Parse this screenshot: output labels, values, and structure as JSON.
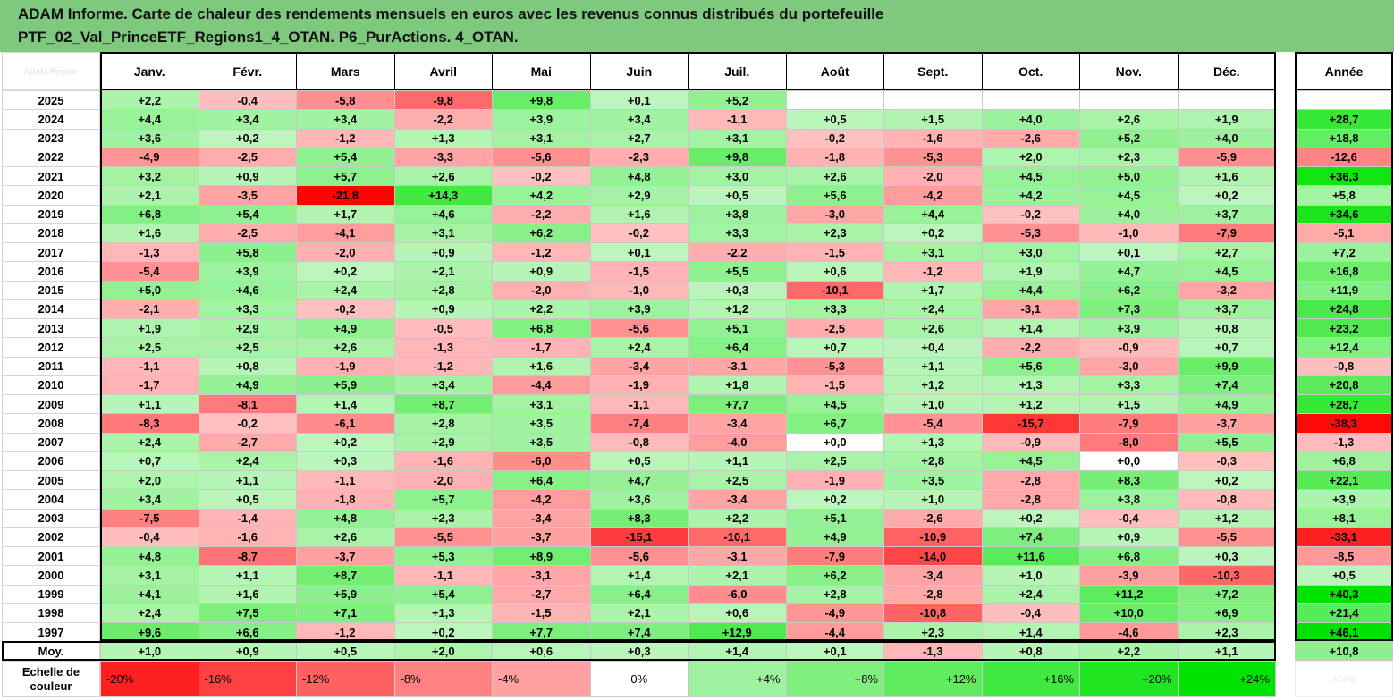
{
  "title_line1": "ADAM Informe. Carte de chaleur des rendements mensuels en euros avec les revenus connus distribués du portefeuille",
  "title_line2": "PTF_02_Val_PrinceETF_Regions1_4_OTAN. P6_PurActions. 4_OTAN.",
  "corner_label": "ADAM Regular",
  "watermark": "ADAM",
  "scale_label_line1": "Echelle de",
  "scale_label_line2": "couleur",
  "colors": {
    "header_bg": "#7ec97e",
    "negative": "#ff0000",
    "positive": "#00e000",
    "neutral": "#ffffff"
  },
  "chart_data": {
    "type": "heatmap",
    "title": "ADAM Informe. Carte de chaleur des rendements mensuels en euros avec les revenus connus distribués du portefeuille PTF_02_Val_PrinceETF_Regions1_4_OTAN. P6_PurActions. 4_OTAN.",
    "columns": [
      "Janv.",
      "Févr.",
      "Mars",
      "Avril",
      "Mai",
      "Juin",
      "Juil.",
      "Août",
      "Sept.",
      "Oct.",
      "Nov.",
      "Déc."
    ],
    "annual_column": "Année",
    "rows": [
      {
        "label": "2025",
        "values": [
          "+2,2",
          "-0,4",
          "-5,8",
          "-9,8",
          "+9,8",
          "+0,1",
          "+5,2",
          "",
          "",
          "",
          "",
          ""
        ],
        "annual": ""
      },
      {
        "label": "2024",
        "values": [
          "+4,4",
          "+3,4",
          "+3,4",
          "-2,2",
          "+3,9",
          "+3,4",
          "-1,1",
          "+0,5",
          "+1,5",
          "+4,0",
          "+2,6",
          "+1,9"
        ],
        "annual": "+28,7"
      },
      {
        "label": "2023",
        "values": [
          "+3,6",
          "+0,2",
          "-1,2",
          "+1,3",
          "+3,1",
          "+2,7",
          "+3,1",
          "-0,2",
          "-1,6",
          "-2,6",
          "+5,2",
          "+4,0"
        ],
        "annual": "+18,8"
      },
      {
        "label": "2022",
        "values": [
          "-4,9",
          "-2,5",
          "+5,4",
          "-3,3",
          "-5,6",
          "-2,3",
          "+9,8",
          "-1,8",
          "-5,3",
          "+2,0",
          "+2,3",
          "-5,9"
        ],
        "annual": "-12,6"
      },
      {
        "label": "2021",
        "values": [
          "+3,2",
          "+0,9",
          "+5,7",
          "+2,6",
          "-0,2",
          "+4,8",
          "+3,0",
          "+2,6",
          "-2,0",
          "+4,5",
          "+5,0",
          "+1,6"
        ],
        "annual": "+36,3"
      },
      {
        "label": "2020",
        "values": [
          "+2,1",
          "-3,5",
          "-21,8",
          "+14,3",
          "+4,2",
          "+2,9",
          "+0,5",
          "+5,6",
          "-4,2",
          "+4,2",
          "+4,5",
          "+0,2"
        ],
        "annual": "+5,8"
      },
      {
        "label": "2019",
        "values": [
          "+6,8",
          "+5,4",
          "+1,7",
          "+4,6",
          "-2,2",
          "+1,6",
          "+3,8",
          "-3,0",
          "+4,4",
          "-0,2",
          "+4,0",
          "+3,7"
        ],
        "annual": "+34,6"
      },
      {
        "label": "2018",
        "values": [
          "+1,6",
          "-2,5",
          "-4,1",
          "+3,1",
          "+6,2",
          "-0,2",
          "+3,3",
          "+2,3",
          "+0,2",
          "-5,3",
          "-1,0",
          "-7,9"
        ],
        "annual": "-5,1"
      },
      {
        "label": "2017",
        "values": [
          "-1,3",
          "+5,8",
          "-2,0",
          "+0,9",
          "-1,2",
          "+0,1",
          "-2,2",
          "-1,5",
          "+3,1",
          "+3,0",
          "+0,1",
          "+2,7"
        ],
        "annual": "+7,2"
      },
      {
        "label": "2016",
        "values": [
          "-5,4",
          "+3,9",
          "+0,2",
          "+2,1",
          "+0,9",
          "-1,5",
          "+5,5",
          "+0,6",
          "-1,2",
          "+1,9",
          "+4,7",
          "+4,5"
        ],
        "annual": "+16,8"
      },
      {
        "label": "2015",
        "values": [
          "+5,0",
          "+4,6",
          "+2,4",
          "+2,8",
          "-2,0",
          "-1,0",
          "+0,3",
          "-10,1",
          "+1,7",
          "+4,4",
          "+6,2",
          "-3,2"
        ],
        "annual": "+11,9"
      },
      {
        "label": "2014",
        "values": [
          "-2,1",
          "+3,3",
          "-0,2",
          "+0,9",
          "+2,2",
          "+3,9",
          "+1,2",
          "+3,3",
          "+2,4",
          "-3,1",
          "+7,3",
          "+3,7"
        ],
        "annual": "+24,8"
      },
      {
        "label": "2013",
        "values": [
          "+1,9",
          "+2,9",
          "+4,9",
          "-0,5",
          "+6,8",
          "-5,6",
          "+5,1",
          "-2,5",
          "+2,6",
          "+1,4",
          "+3,9",
          "+0,8"
        ],
        "annual": "+23,2"
      },
      {
        "label": "2012",
        "values": [
          "+2,5",
          "+2,5",
          "+2,6",
          "-1,3",
          "-1,7",
          "+2,4",
          "+6,4",
          "+0,7",
          "+0,4",
          "-2,2",
          "-0,9",
          "+0,7"
        ],
        "annual": "+12,4"
      },
      {
        "label": "2011",
        "values": [
          "-1,1",
          "+0,8",
          "-1,9",
          "-1,2",
          "+1,6",
          "-3,4",
          "-3,1",
          "-5,3",
          "+1,1",
          "+5,6",
          "-3,0",
          "+9,9"
        ],
        "annual": "-0,8"
      },
      {
        "label": "2010",
        "values": [
          "-1,7",
          "+4,9",
          "+5,9",
          "+3,4",
          "-4,4",
          "-1,9",
          "+1,8",
          "-1,5",
          "+1,2",
          "+1,3",
          "+3,3",
          "+7,4"
        ],
        "annual": "+20,8"
      },
      {
        "label": "2009",
        "values": [
          "+1,1",
          "-8,1",
          "+1,4",
          "+8,7",
          "+3,1",
          "-1,1",
          "+7,7",
          "+4,5",
          "+1,0",
          "+1,2",
          "+1,5",
          "+4,9"
        ],
        "annual": "+28,7"
      },
      {
        "label": "2008",
        "values": [
          "-8,3",
          "-0,2",
          "-6,1",
          "+2,8",
          "+3,5",
          "-7,4",
          "-3,4",
          "+6,7",
          "-5,4",
          "-15,7",
          "-7,9",
          "-3,7"
        ],
        "annual": "-38,3"
      },
      {
        "label": "2007",
        "values": [
          "+2,4",
          "-2,7",
          "+0,2",
          "+2,9",
          "+3,5",
          "-0,8",
          "-4,0",
          "+0,0",
          "+1,3",
          "-0,9",
          "-8,0",
          "+5,5"
        ],
        "annual": "-1,3"
      },
      {
        "label": "2006",
        "values": [
          "+0,7",
          "+2,4",
          "+0,3",
          "-1,6",
          "-6,0",
          "+0,5",
          "+1,1",
          "+2,5",
          "+2,8",
          "+4,5",
          "+0,0",
          "-0,3"
        ],
        "annual": "+6,8"
      },
      {
        "label": "2005",
        "values": [
          "+2,0",
          "+1,1",
          "-1,1",
          "-2,0",
          "+6,4",
          "+4,7",
          "+2,5",
          "-1,9",
          "+3,5",
          "-2,8",
          "+8,3",
          "+0,2"
        ],
        "annual": "+22,1"
      },
      {
        "label": "2004",
        "values": [
          "+3,4",
          "+0,5",
          "-1,8",
          "+5,7",
          "-4,2",
          "+3,6",
          "-3,4",
          "+0,2",
          "+1,0",
          "-2,8",
          "+3,8",
          "-0,8"
        ],
        "annual": "+3,9"
      },
      {
        "label": "2003",
        "values": [
          "-7,5",
          "-1,4",
          "+4,8",
          "+2,3",
          "-3,4",
          "+8,3",
          "+2,2",
          "+5,1",
          "-2,6",
          "+0,2",
          "-0,4",
          "+1,2"
        ],
        "annual": "+8,1"
      },
      {
        "label": "2002",
        "values": [
          "-0,4",
          "-1,6",
          "+2,6",
          "-5,5",
          "-3,7",
          "-15,1",
          "-10,1",
          "+4,9",
          "-10,9",
          "+7,4",
          "+0,9",
          "-5,5"
        ],
        "annual": "-33,1"
      },
      {
        "label": "2001",
        "values": [
          "+4,8",
          "-8,7",
          "-3,7",
          "+5,3",
          "+8,9",
          "-5,6",
          "-3,1",
          "-7,9",
          "-14,0",
          "+11,6",
          "+6,8",
          "+0,3"
        ],
        "annual": "-8,5"
      },
      {
        "label": "2000",
        "values": [
          "+3,1",
          "+1,1",
          "+8,7",
          "-1,1",
          "-3,1",
          "+1,4",
          "+2,1",
          "+6,2",
          "-3,4",
          "+1,0",
          "-3,9",
          "-10,3"
        ],
        "annual": "+0,5"
      },
      {
        "label": "1999",
        "values": [
          "+4,1",
          "+1,6",
          "+5,9",
          "+5,4",
          "-2,7",
          "+6,4",
          "-6,0",
          "+2,8",
          "-2,8",
          "+2,4",
          "+11,2",
          "+7,2"
        ],
        "annual": "+40,3"
      },
      {
        "label": "1998",
        "values": [
          "+2,4",
          "+7,5",
          "+7,1",
          "+1,3",
          "-1,5",
          "+2,1",
          "+0,6",
          "-4,9",
          "-10,8",
          "-0,4",
          "+10,0",
          "+6,9"
        ],
        "annual": "+21,4"
      },
      {
        "label": "1997",
        "values": [
          "+9,6",
          "+6,6",
          "-1,2",
          "+0,2",
          "+7,7",
          "+7,4",
          "+12,9",
          "-4,4",
          "+2,3",
          "+1,4",
          "-4,6",
          "+2,3"
        ],
        "annual": "+46,1"
      },
      {
        "label": "Moy.",
        "values": [
          "+1,0",
          "+0,9",
          "+0,5",
          "+2,0",
          "+0,6",
          "+0,3",
          "+1,4",
          "+0,1",
          "-1,3",
          "+0,8",
          "+2,2",
          "+1,1"
        ],
        "annual": "+10,8"
      }
    ],
    "scale": [
      "-20%",
      "-16%",
      "-12%",
      "-8%",
      "-4%",
      "0%",
      "+4%",
      "+8%",
      "+12%",
      "+16%",
      "+20%",
      "+24%"
    ]
  }
}
